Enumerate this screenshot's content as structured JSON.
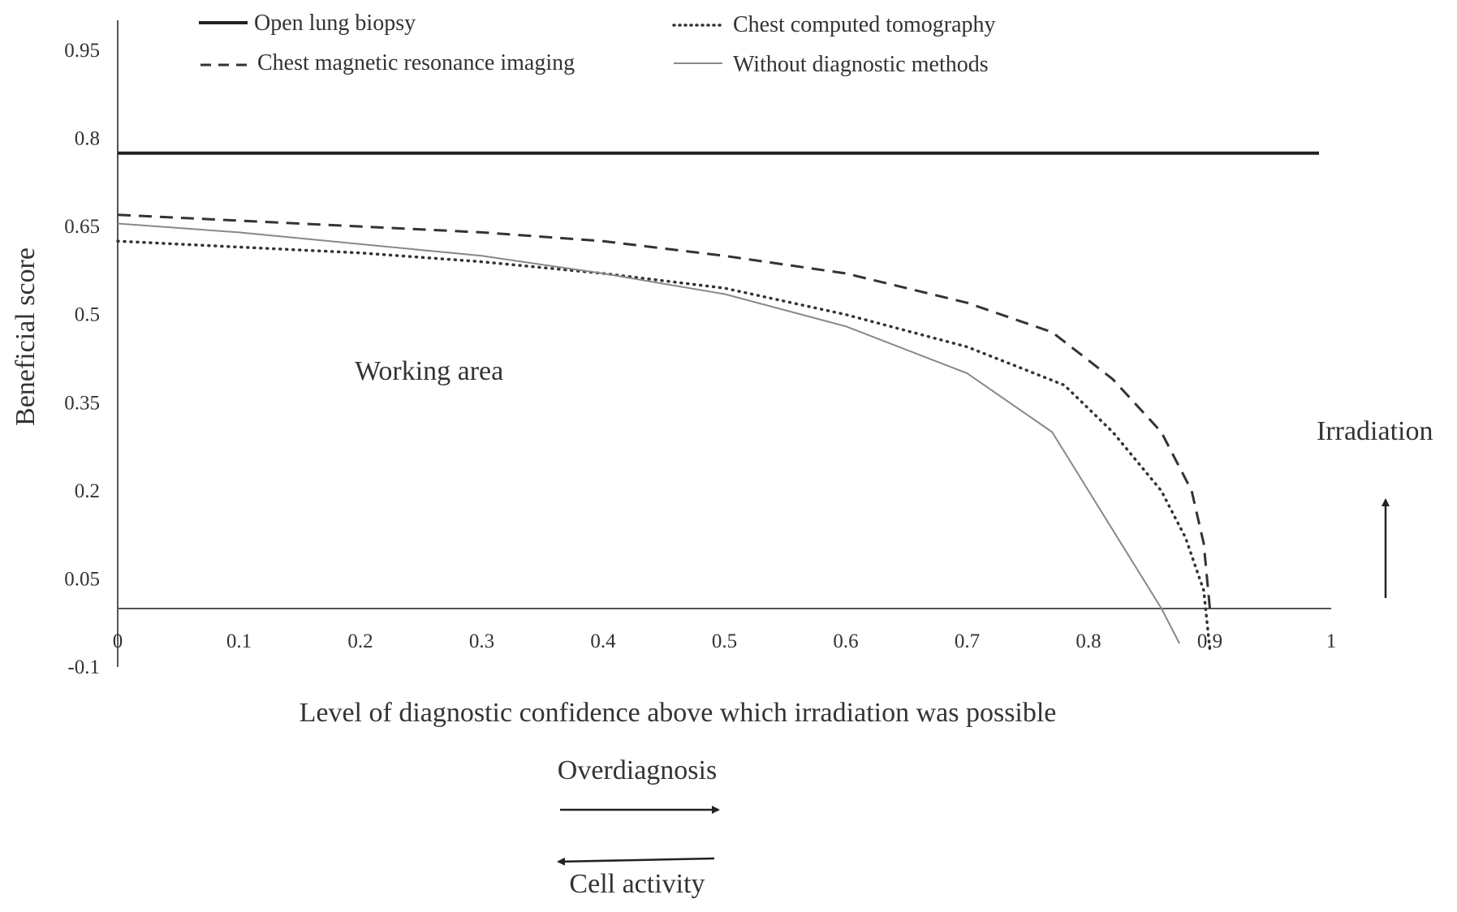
{
  "chart_data": {
    "type": "line",
    "title": "",
    "xlabel": "Level of diagnostic confidence above which irradiation was possible",
    "ylabel": "Beneficial score",
    "xlim": [
      0,
      1
    ],
    "ylim": [
      -0.1,
      0.95
    ],
    "x_ticks": [
      "0",
      "0.1",
      "0.2",
      "0.3",
      "0.4",
      "0.5",
      "0.6",
      "0.7",
      "0.8",
      "0.9",
      "1"
    ],
    "y_ticks": [
      "0.95",
      "0.8",
      "0.65",
      "0.5",
      "0.35",
      "0.2",
      "0.05",
      "-0.1"
    ],
    "grid": false,
    "legend_position": "top",
    "series": [
      {
        "name": "Open lung biopsy",
        "style": "solid-thick",
        "color": "#222222",
        "points": [
          [
            0,
            0.775
          ],
          [
            0.99,
            0.775
          ]
        ]
      },
      {
        "name": "Chest computed tomography",
        "style": "dotted",
        "color": "#333333",
        "points": [
          [
            0,
            0.625
          ],
          [
            0.1,
            0.615
          ],
          [
            0.2,
            0.605
          ],
          [
            0.3,
            0.59
          ],
          [
            0.4,
            0.57
          ],
          [
            0.5,
            0.545
          ],
          [
            0.6,
            0.5
          ],
          [
            0.7,
            0.445
          ],
          [
            0.78,
            0.38
          ],
          [
            0.82,
            0.3
          ],
          [
            0.86,
            0.2
          ],
          [
            0.88,
            0.12
          ],
          [
            0.895,
            0.03
          ],
          [
            0.9,
            -0.07
          ]
        ]
      },
      {
        "name": "Chest magnetic resonance imaging",
        "style": "dashed",
        "color": "#333333",
        "points": [
          [
            0,
            0.67
          ],
          [
            0.1,
            0.66
          ],
          [
            0.2,
            0.65
          ],
          [
            0.3,
            0.64
          ],
          [
            0.4,
            0.625
          ],
          [
            0.5,
            0.6
          ],
          [
            0.6,
            0.57
          ],
          [
            0.7,
            0.52
          ],
          [
            0.77,
            0.47
          ],
          [
            0.82,
            0.39
          ],
          [
            0.86,
            0.3
          ],
          [
            0.885,
            0.2
          ],
          [
            0.895,
            0.11
          ],
          [
            0.9,
            0.0
          ]
        ]
      },
      {
        "name": "Without diagnostic methods",
        "style": "solid-thin",
        "color": "#888888",
        "points": [
          [
            0,
            0.655
          ],
          [
            0.1,
            0.64
          ],
          [
            0.2,
            0.62
          ],
          [
            0.3,
            0.6
          ],
          [
            0.4,
            0.57
          ],
          [
            0.5,
            0.535
          ],
          [
            0.6,
            0.48
          ],
          [
            0.7,
            0.4
          ],
          [
            0.77,
            0.3
          ],
          [
            0.8,
            0.2
          ],
          [
            0.83,
            0.1
          ],
          [
            0.86,
            0.0
          ],
          [
            0.875,
            -0.06
          ]
        ]
      }
    ],
    "annotations": {
      "working_area": "Working area",
      "irradiation": "Irradiation",
      "overdiagnosis": "Overdiagnosis",
      "cell_activity": "Cell activity"
    }
  }
}
